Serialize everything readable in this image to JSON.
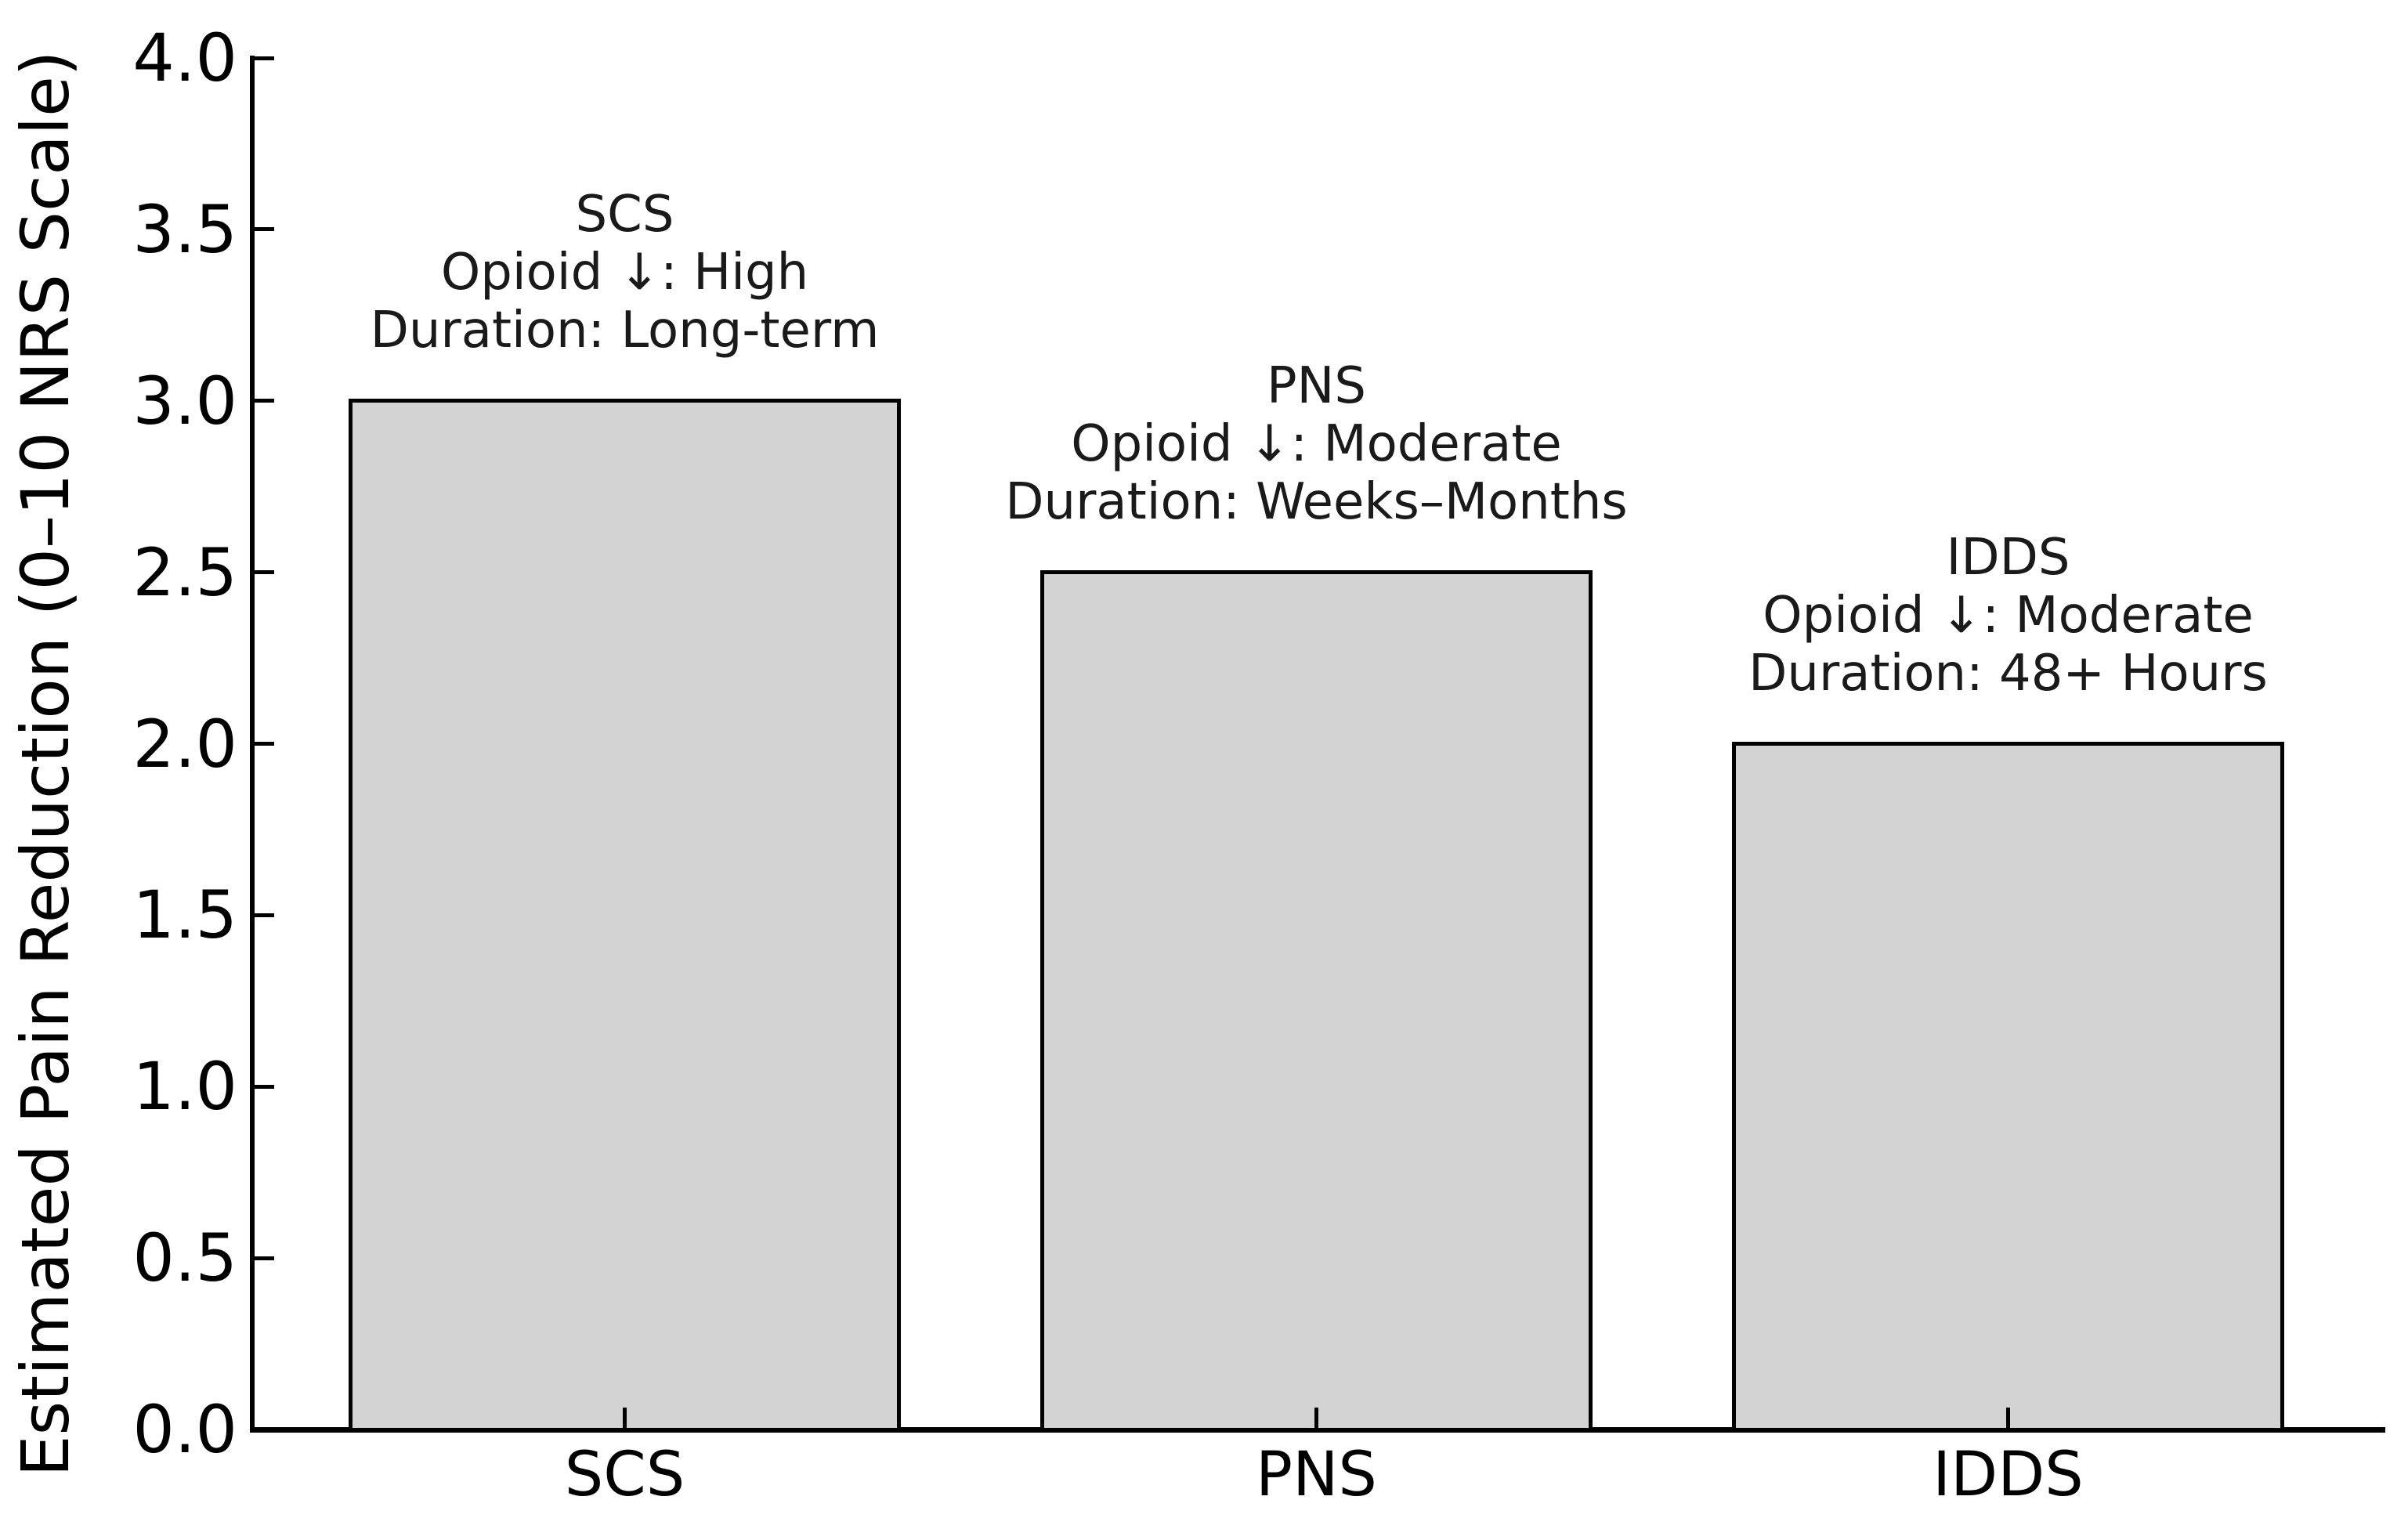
{
  "chart_data": {
    "type": "bar",
    "title": "",
    "xlabel": "",
    "ylabel": "Estimated Pain Reduction (0–10 NRS Scale)",
    "categories": [
      "SCS",
      "PNS",
      "IDDS"
    ],
    "values": [
      3.0,
      2.5,
      2.0
    ],
    "ylim": [
      0.0,
      4.0
    ],
    "ytick_values": [
      0.0,
      0.5,
      1.0,
      1.5,
      2.0,
      2.5,
      3.0,
      3.5,
      4.0
    ],
    "ytick_labels": [
      "0.0",
      "0.5",
      "1.0",
      "1.5",
      "2.0",
      "2.5",
      "3.0",
      "3.5",
      "4.0"
    ],
    "grid": false,
    "legend": null,
    "tick_direction": "in",
    "bar_fill": "#d3d3d3",
    "bar_edge": "#000000",
    "annotations": [
      {
        "category": "SCS",
        "lines": [
          "SCS",
          "Opioid ↓: High",
          "Duration: Long-term"
        ]
      },
      {
        "category": "PNS",
        "lines": [
          "PNS",
          "Opioid ↓: Moderate",
          "Duration: Weeks–Months"
        ]
      },
      {
        "category": "IDDS",
        "lines": [
          "IDDS",
          "Opioid ↓: Moderate",
          "Duration: 48+ Hours"
        ]
      }
    ]
  },
  "colors": {
    "axis": "#000000",
    "tick_text": "#000000",
    "annotation_text": "#1a1a1a",
    "background": "#ffffff"
  }
}
